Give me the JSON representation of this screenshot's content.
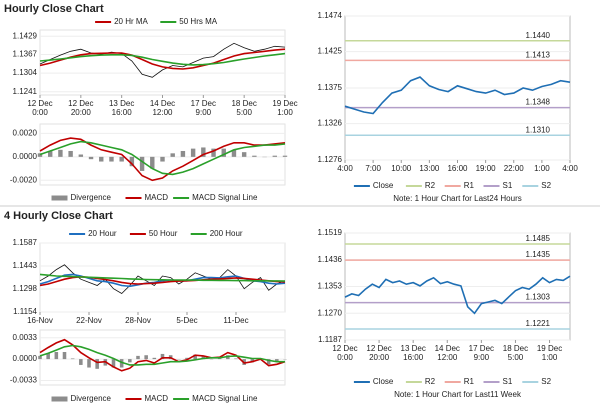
{
  "headings": [
    "Hourly Close Chart",
    "4 Hourly Close Chart"
  ],
  "chart_data": [
    {
      "type": "line",
      "legend": "top",
      "xlim": [
        0,
        24
      ],
      "ylim": [
        1.123,
        1.145
      ],
      "yticks": [
        1.1241,
        1.1304,
        1.1367,
        1.1429
      ],
      "xticks": [
        {
          "value": 0,
          "label": "12 Dec\n0:00"
        },
        {
          "value": 4,
          "label": "12 Dec\n20:00"
        },
        {
          "value": 8,
          "label": "13 Dec\n16:00"
        },
        {
          "value": 12,
          "label": "14 Dec\n12:00"
        },
        {
          "value": 16,
          "label": "17 Dec\n9:00"
        },
        {
          "value": 20,
          "label": "18 Dec\n5:00"
        },
        {
          "value": 24,
          "label": "19 Dec\n1:00"
        }
      ],
      "series": [
        {
          "color": "#111111",
          "values": [
            1.1335,
            1.135,
            1.1365,
            1.1378,
            1.1385,
            1.1372,
            1.1368,
            1.1375,
            1.137,
            1.1345,
            1.13,
            1.129,
            1.1315,
            1.133,
            1.1325,
            1.134,
            1.1355,
            1.136,
            1.1385,
            1.1405,
            1.139,
            1.1378,
            1.1385,
            1.1395,
            1.1392
          ]
        },
        {
          "name": "20 Hr MA",
          "color": "#c00000",
          "values": [
            1.133,
            1.1338,
            1.1348,
            1.1358,
            1.1366,
            1.137,
            1.1371,
            1.1372,
            1.1372,
            1.1365,
            1.135,
            1.1335,
            1.1325,
            1.132,
            1.1318,
            1.1322,
            1.133,
            1.1338,
            1.135,
            1.1362,
            1.137,
            1.1374,
            1.1378,
            1.1382,
            1.1385
          ]
        },
        {
          "name": "50 Hrs MA",
          "color": "#2aa02a",
          "values": [
            1.1345,
            1.1348,
            1.1352,
            1.1356,
            1.136,
            1.1363,
            1.1365,
            1.1366,
            1.1366,
            1.1364,
            1.1358,
            1.135,
            1.1344,
            1.1338,
            1.1334,
            1.1332,
            1.1333,
            1.1336,
            1.134,
            1.1346,
            1.1352,
            1.1357,
            1.1362,
            1.1366,
            1.137
          ]
        }
      ]
    },
    {
      "type": "line",
      "legend": "bottom",
      "xlim": [
        0,
        24
      ],
      "ylim": [
        -0.0024,
        0.0028
      ],
      "yticks": [
        {
          "value": 0.002,
          "label": "0.0020"
        },
        {
          "value": 0,
          "label": "0.0000"
        },
        {
          "value": -0.002,
          "label": "-0.0020"
        }
      ],
      "series": [
        {
          "name": "Divergence",
          "type": "bar",
          "color": "#8c8c8c",
          "values": [
            0.0003,
            0.0005,
            0.0006,
            0.0005,
            0.0002,
            -0.0002,
            -0.0004,
            -0.0004,
            -0.0004,
            -0.0008,
            -0.0012,
            -0.001,
            -0.0004,
            0.0003,
            0.0005,
            0.0007,
            0.0008,
            0.0007,
            0.0007,
            0.0006,
            0.0004,
            0.0001,
            0,
            0.0001,
            0.0001
          ]
        },
        {
          "name": "MACD",
          "color": "#c00000",
          "values": [
            0.0005,
            0.001,
            0.0014,
            0.0016,
            0.0015,
            0.001,
            0.0006,
            0.0004,
            0.0002,
            -0.0006,
            -0.0016,
            -0.002,
            -0.0018,
            -0.0012,
            -0.0008,
            -0.0003,
            0.0002,
            0.0005,
            0.0009,
            0.0012,
            0.0012,
            0.001,
            0.001,
            0.0011,
            0.0012
          ]
        },
        {
          "name": "MACD Signal Line",
          "color": "#2aa02a",
          "values": [
            0.0002,
            0.0005,
            0.0008,
            0.0011,
            0.0013,
            0.0012,
            0.001,
            0.0008,
            0.0006,
            0.0002,
            -0.0004,
            -0.001,
            -0.0014,
            -0.0015,
            -0.0013,
            -0.001,
            -0.0006,
            -0.0002,
            0.0002,
            0.0006,
            0.0008,
            0.0009,
            0.001,
            0.001,
            0.0011
          ]
        }
      ]
    },
    {
      "type": "line",
      "legend": "bottom",
      "box": true,
      "xlim": [
        0,
        24
      ],
      "ylim": [
        1.1276,
        1.1474
      ],
      "yticks": [
        1.1276,
        1.1326,
        1.1375,
        1.1425,
        1.1474
      ],
      "xticks": [
        {
          "value": 0,
          "label": "4:00"
        },
        {
          "value": 3,
          "label": "7:00"
        },
        {
          "value": 6,
          "label": "10:00"
        },
        {
          "value": 9,
          "label": "13:00"
        },
        {
          "value": 12,
          "label": "16:00"
        },
        {
          "value": 15,
          "label": "19:00"
        },
        {
          "value": 18,
          "label": "22:00"
        },
        {
          "value": 21,
          "label": "1:00"
        },
        {
          "value": 24,
          "label": "4:00"
        }
      ],
      "series": [
        {
          "name": "Close",
          "color": "#1f6fb4",
          "values": [
            1.135,
            1.1346,
            1.1342,
            1.134,
            1.1355,
            1.1368,
            1.1372,
            1.1385,
            1.139,
            1.1378,
            1.1373,
            1.137,
            1.1378,
            1.1374,
            1.137,
            1.1368,
            1.1372,
            1.1366,
            1.1368,
            1.1375,
            1.1372,
            1.1377,
            1.138,
            1.1385,
            1.1383
          ]
        }
      ],
      "levels": [
        {
          "name": "R2",
          "color": "#c5d89a",
          "value": 1.144,
          "value_label": "1.1440"
        },
        {
          "name": "R1",
          "color": "#f0a8a0",
          "value": 1.1413
        },
        {
          "name": "S1",
          "color": "#b39fc9",
          "value": 1.1348
        },
        {
          "name": "S2",
          "color": "#a8d3e0",
          "value": 1.131,
          "value_label": "1.1310"
        }
      ],
      "note": "Note: 1 Hour Chart for Last24 Hours"
    },
    {
      "type": "line",
      "legend": "top",
      "xlim": [
        0,
        30
      ],
      "ylim": [
        1.1154,
        1.1587
      ],
      "yticks": [
        1.1154,
        1.1298,
        1.1443,
        1.1587
      ],
      "xticks": [
        {
          "value": 0,
          "label": "16-Nov"
        },
        {
          "value": 6,
          "label": "22-Nov"
        },
        {
          "value": 12,
          "label": "28-Nov"
        },
        {
          "value": 18,
          "label": "5-Dec"
        },
        {
          "value": 24,
          "label": "11-Dec"
        }
      ],
      "series": [
        {
          "color": "#111111",
          "values": [
            1.135,
            1.138,
            1.142,
            1.145,
            1.14,
            1.136,
            1.134,
            1.132,
            1.136,
            1.13,
            1.127,
            1.132,
            1.138,
            1.135,
            1.132,
            1.138,
            1.137,
            1.133,
            1.136,
            1.14,
            1.138,
            1.136,
            1.137,
            1.142,
            1.138,
            1.13,
            1.134,
            1.137,
            1.129,
            1.133,
            1.135
          ]
        },
        {
          "name": "20 Hour",
          "color": "#1f6fc0",
          "values": [
            1.133,
            1.1345,
            1.1365,
            1.1385,
            1.139,
            1.138,
            1.1365,
            1.135,
            1.1345,
            1.1335,
            1.132,
            1.1315,
            1.1325,
            1.1335,
            1.134,
            1.135,
            1.1355,
            1.135,
            1.135,
            1.136,
            1.137,
            1.137,
            1.1368,
            1.1375,
            1.138,
            1.1365,
            1.135,
            1.1345,
            1.1335,
            1.133,
            1.1335
          ]
        },
        {
          "name": "50 Hour",
          "color": "#c00000",
          "values": [
            1.132,
            1.133,
            1.1345,
            1.136,
            1.137,
            1.1375,
            1.1372,
            1.1365,
            1.1358,
            1.135,
            1.134,
            1.1332,
            1.133,
            1.1332,
            1.1335,
            1.134,
            1.1345,
            1.1348,
            1.135,
            1.1352,
            1.1356,
            1.136,
            1.1362,
            1.1365,
            1.1368,
            1.1365,
            1.136,
            1.1355,
            1.135,
            1.1345,
            1.1342
          ]
        },
        {
          "name": "200 Hour",
          "color": "#2aa02a",
          "values": [
            1.139,
            1.1385,
            1.138,
            1.1378,
            1.1376,
            1.1374,
            1.1372,
            1.137,
            1.1368,
            1.1366,
            1.1364,
            1.1362,
            1.136,
            1.1358,
            1.1357,
            1.1356,
            1.1355,
            1.1355,
            1.1354,
            1.1354,
            1.1353,
            1.1353,
            1.1352,
            1.1352,
            1.1351,
            1.1351,
            1.135,
            1.135,
            1.1349,
            1.1349,
            1.1348
          ]
        }
      ]
    },
    {
      "type": "line",
      "legend": "bottom",
      "xlim": [
        0,
        30
      ],
      "ylim": [
        -0.004,
        0.0045
      ],
      "yticks": [
        {
          "value": 0.0033,
          "label": "0.0033"
        },
        {
          "value": 0,
          "label": "0.0000"
        },
        {
          "value": -0.0033,
          "label": "-0.0033"
        }
      ],
      "series": [
        {
          "name": "Divergence",
          "type": "bar",
          "color": "#8c8c8c",
          "values": [
            0.0005,
            0.0009,
            0.0011,
            0.0011,
            0.0001,
            -0.0009,
            -0.0013,
            -0.0015,
            -0.001,
            -0.0013,
            -0.0013,
            -0.0005,
            0.0005,
            0.0006,
            0.0002,
            0.0008,
            0.0006,
            0,
            0.0002,
            0.0007,
            0.0004,
            0,
            0.0001,
            0.0006,
            0.0001,
            -0.0009,
            -0.0005,
            -0.0001,
            -0.0008,
            -0.0004,
            0
          ]
        },
        {
          "name": "MACD",
          "color": "#c00000",
          "values": [
            0.001,
            0.0018,
            0.0025,
            0.003,
            0.0022,
            0.001,
            0.0002,
            -0.0005,
            -0.0004,
            -0.0012,
            -0.0018,
            -0.0014,
            -0.0004,
            -0.0002,
            -0.0006,
            0.0002,
            0.0002,
            -0.0004,
            -0.0001,
            0.0006,
            0.0005,
            0.0002,
            0.0003,
            0.001,
            0.0006,
            -0.0006,
            -0.0004,
            0,
            -0.001,
            -0.0008,
            -0.0004
          ]
        },
        {
          "name": "MACD Signal Line",
          "color": "#2aa02a",
          "values": [
            0.0005,
            0.0009,
            0.0014,
            0.0019,
            0.0021,
            0.0019,
            0.0015,
            0.001,
            0.0006,
            0.0001,
            -0.0005,
            -0.0009,
            -0.0009,
            -0.0008,
            -0.0008,
            -0.0006,
            -0.0004,
            -0.0004,
            -0.0003,
            -0.0001,
            0.0001,
            0.0002,
            0.0002,
            0.0004,
            0.0005,
            0.0003,
            0.0001,
            0.0001,
            -0.0002,
            -0.0004,
            -0.0004
          ]
        }
      ]
    },
    {
      "type": "line",
      "legend": "bottom",
      "box": true,
      "xlim": [
        0,
        33
      ],
      "ylim": [
        1.1187,
        1.1519
      ],
      "yticks": [
        1.1187,
        {
          "value": 1.127,
          "label": "1.1270"
        },
        1.1353,
        1.1436,
        1.1519
      ],
      "xticks": [
        {
          "value": 0,
          "label": "12 Dec\n0:00"
        },
        {
          "value": 5,
          "label": "12 Dec\n20:00"
        },
        {
          "value": 10,
          "label": "13 Dec\n16:00"
        },
        {
          "value": 15,
          "label": "14 Dec\n12:00"
        },
        {
          "value": 20,
          "label": "17 Dec\n9:00"
        },
        {
          "value": 25,
          "label": "18 Dec\n5:00"
        },
        {
          "value": 30,
          "label": "19 Dec\n1:00"
        }
      ],
      "series": [
        {
          "name": "Close",
          "color": "#1f6fb4",
          "values": [
            1.132,
            1.133,
            1.1325,
            1.1345,
            1.136,
            1.135,
            1.1375,
            1.1365,
            1.137,
            1.136,
            1.1365,
            1.1355,
            1.137,
            1.138,
            1.1362,
            1.1368,
            1.136,
            1.1355,
            1.129,
            1.127,
            1.13,
            1.1305,
            1.131,
            1.13,
            1.132,
            1.134,
            1.135,
            1.1345,
            1.136,
            1.138,
            1.1365,
            1.1375,
            1.1372,
            1.1385
          ]
        }
      ],
      "levels": [
        {
          "name": "R2",
          "color": "#c5d89a",
          "value": 1.1485
        },
        {
          "name": "R1",
          "color": "#f0a8a0",
          "value": 1.1435
        },
        {
          "name": "S1",
          "color": "#b39fc9",
          "value": 1.1303
        },
        {
          "name": "S2",
          "color": "#a8d3e0",
          "value": 1.1221
        }
      ],
      "note": "Note: 1 Hour Chart for Last11 Week"
    }
  ]
}
